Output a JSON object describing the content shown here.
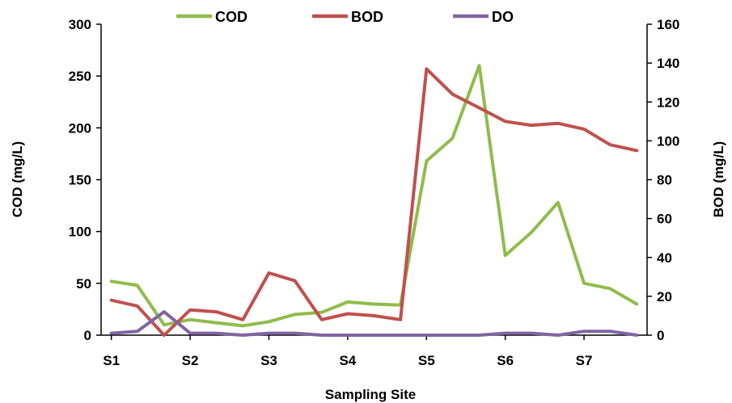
{
  "chart_data": {
    "type": "line",
    "title": "",
    "xlabel": "Sampling Site",
    "ylabel_left": "COD (mg/L)",
    "ylabel_right": "BOD (mg/L)",
    "ylim_left": [
      0,
      300
    ],
    "ylim_right": [
      0,
      160
    ],
    "yticks_left": [
      0,
      50,
      100,
      150,
      200,
      250,
      300
    ],
    "yticks_right": [
      0,
      20,
      40,
      60,
      80,
      100,
      120,
      140,
      160
    ],
    "x_points": [
      1.0,
      1.33,
      1.67,
      2.0,
      2.33,
      2.67,
      3.0,
      3.33,
      3.67,
      4.0,
      4.33,
      4.67,
      5.0,
      5.33,
      5.67,
      6.0,
      6.33,
      6.67,
      7.0,
      7.33,
      7.67
    ],
    "x_tick_values": [
      1,
      2,
      3,
      4,
      5,
      6,
      7
    ],
    "x_tick_labels": [
      "S1",
      "S2",
      "S3",
      "S4",
      "S5",
      "S6",
      "S7"
    ],
    "grid": false,
    "legend_position": "top",
    "series": [
      {
        "name": "COD",
        "axis": "left",
        "color": "#8fbc4c",
        "values": [
          52,
          48,
          10,
          15,
          12,
          9,
          13,
          20,
          22,
          32,
          30,
          29,
          168,
          190,
          260,
          77,
          99,
          128,
          50,
          45,
          30
        ]
      },
      {
        "name": "BOD",
        "axis": "right",
        "color": "#c0504d",
        "values": [
          18,
          15,
          0,
          13,
          12,
          8,
          32,
          28,
          8,
          11,
          10,
          8,
          137,
          124,
          117,
          110,
          108,
          109,
          106,
          98,
          95
        ]
      },
      {
        "name": "DO",
        "axis": "right",
        "color": "#8064a2",
        "values": [
          1,
          2,
          12,
          1,
          1,
          0,
          1,
          1,
          0,
          0,
          0,
          0,
          0,
          0,
          0,
          1,
          1,
          0,
          2,
          2,
          0
        ]
      }
    ]
  }
}
